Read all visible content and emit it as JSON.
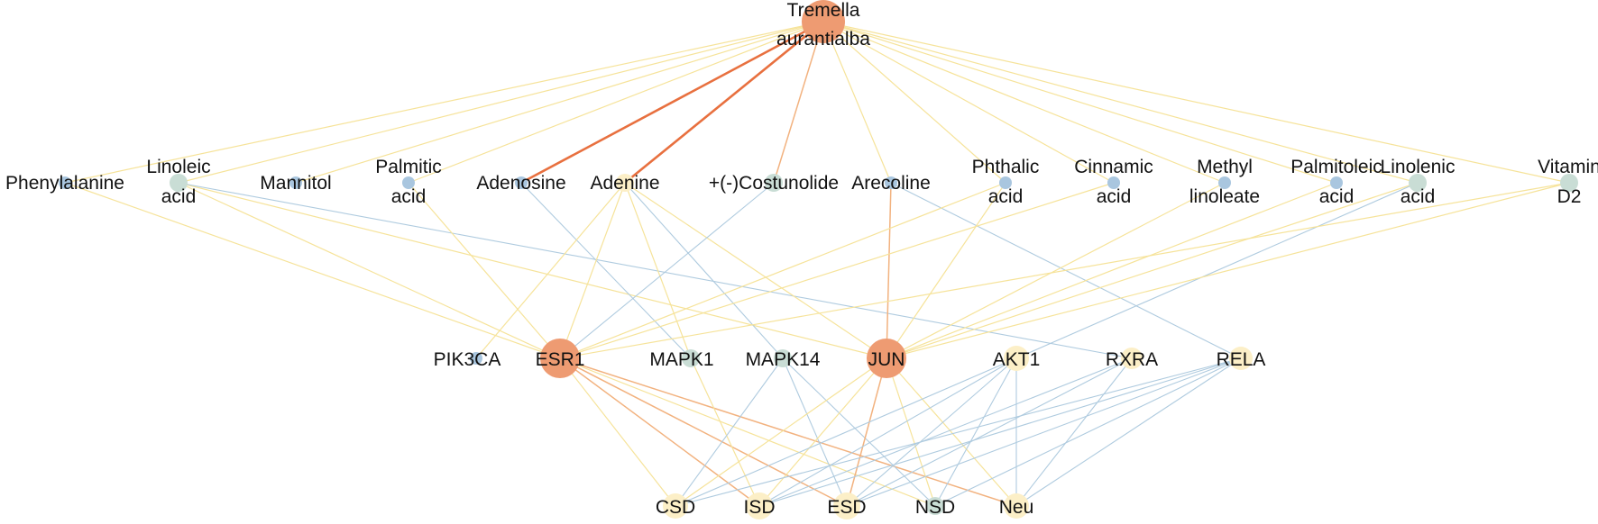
{
  "colors": {
    "hub": "#EE9B72",
    "hub_edge": "#E8703F",
    "light_node": "#FCEFC7",
    "blue_node": "#A9C6DF",
    "teal_node": "#C9DDD5",
    "yellow_edge": "#F6E39A",
    "blue_edge": "#AFCBDF",
    "orange_edge": "#F2B27F"
  },
  "nodes": {
    "tremella": {
      "label": [
        "Tremella",
        "aurantialba"
      ],
      "color": "hub"
    },
    "phenylalanine": {
      "label": [
        "Phenylalanine"
      ],
      "color": "blue_node"
    },
    "linoleic": {
      "label": [
        "Linoleic",
        "acid"
      ],
      "color": "teal_node"
    },
    "mannitol": {
      "label": [
        "Mannitol"
      ],
      "color": "blue_node"
    },
    "palmitic": {
      "label": [
        "Palmitic",
        "acid"
      ],
      "color": "blue_node"
    },
    "adenosine": {
      "label": [
        "Adenosine"
      ],
      "color": "blue_node"
    },
    "adenine": {
      "label": [
        "Adenine"
      ],
      "color": "light_node"
    },
    "costunolide": {
      "label": [
        "+(-)Costunolide"
      ],
      "color": "teal_node"
    },
    "arecoline": {
      "label": [
        "Arecoline"
      ],
      "color": "blue_node"
    },
    "phthalic": {
      "label": [
        "Phthalic",
        "acid"
      ],
      "color": "blue_node"
    },
    "cinnamic": {
      "label": [
        "Cinnamic",
        "acid"
      ],
      "color": "blue_node"
    },
    "methyl": {
      "label": [
        "Methyl",
        "linoleate"
      ],
      "color": "blue_node"
    },
    "palmitoleic": {
      "label": [
        "Palmitoleic",
        "acid"
      ],
      "color": "blue_node"
    },
    "linolenic": {
      "label": [
        "Linolenic",
        "acid"
      ],
      "color": "teal_node"
    },
    "vitamind2": {
      "label": [
        "Vitamin",
        "D2"
      ],
      "color": "teal_node"
    },
    "pik3ca": {
      "label": [
        "PIK3CA"
      ],
      "color": "blue_node"
    },
    "esr1": {
      "label": [
        "ESR1"
      ],
      "color": "hub"
    },
    "mapk1": {
      "label": [
        "MAPK1"
      ],
      "color": "teal_node"
    },
    "mapk14": {
      "label": [
        "MAPK14"
      ],
      "color": "teal_node"
    },
    "jun": {
      "label": [
        "JUN"
      ],
      "color": "hub"
    },
    "akt1": {
      "label": [
        "AKT1"
      ],
      "color": "light_node"
    },
    "rxra": {
      "label": [
        "RXRA"
      ],
      "color": "light_node"
    },
    "rela": {
      "label": [
        "RELA"
      ],
      "color": "light_node"
    },
    "csd": {
      "label": [
        "CSD"
      ],
      "color": "light_node"
    },
    "isd": {
      "label": [
        "ISD"
      ],
      "color": "light_node"
    },
    "esd": {
      "label": [
        "ESD"
      ],
      "color": "light_node"
    },
    "nsd": {
      "label": [
        "NSD"
      ],
      "color": "teal_node"
    },
    "neu": {
      "label": [
        "Neu"
      ],
      "color": "light_node"
    }
  },
  "edges": [
    [
      "tremella",
      "phenylalanine",
      "yellow_edge"
    ],
    [
      "tremella",
      "linoleic",
      "yellow_edge"
    ],
    [
      "tremella",
      "mannitol",
      "yellow_edge"
    ],
    [
      "tremella",
      "palmitic",
      "yellow_edge"
    ],
    [
      "tremella",
      "adenosine",
      "hub_edge"
    ],
    [
      "tremella",
      "adenine",
      "hub_edge"
    ],
    [
      "tremella",
      "costunolide",
      "orange_edge"
    ],
    [
      "tremella",
      "arecoline",
      "yellow_edge"
    ],
    [
      "tremella",
      "phthalic",
      "yellow_edge"
    ],
    [
      "tremella",
      "cinnamic",
      "yellow_edge"
    ],
    [
      "tremella",
      "methyl",
      "yellow_edge"
    ],
    [
      "tremella",
      "palmitoleic",
      "yellow_edge"
    ],
    [
      "tremella",
      "linolenic",
      "yellow_edge"
    ],
    [
      "tremella",
      "vitamind2",
      "yellow_edge"
    ],
    [
      "phenylalanine",
      "esr1",
      "yellow_edge"
    ],
    [
      "linoleic",
      "esr1",
      "yellow_edge"
    ],
    [
      "linoleic",
      "jun",
      "yellow_edge"
    ],
    [
      "linoleic",
      "rxra",
      "blue_edge"
    ],
    [
      "palmitic",
      "esr1",
      "yellow_edge"
    ],
    [
      "adenosine",
      "mapk1",
      "blue_edge"
    ],
    [
      "adenine",
      "esr1",
      "yellow_edge"
    ],
    [
      "adenine",
      "mapk1",
      "yellow_edge"
    ],
    [
      "adenine",
      "mapk14",
      "blue_edge"
    ],
    [
      "adenine",
      "jun",
      "yellow_edge"
    ],
    [
      "adenine",
      "pik3ca",
      "yellow_edge"
    ],
    [
      "costunolide",
      "esr1",
      "blue_edge"
    ],
    [
      "arecoline",
      "jun",
      "orange_edge"
    ],
    [
      "arecoline",
      "rela",
      "blue_edge"
    ],
    [
      "phthalic",
      "esr1",
      "yellow_edge"
    ],
    [
      "phthalic",
      "jun",
      "yellow_edge"
    ],
    [
      "cinnamic",
      "esr1",
      "yellow_edge"
    ],
    [
      "methyl",
      "jun",
      "yellow_edge"
    ],
    [
      "palmitoleic",
      "jun",
      "yellow_edge"
    ],
    [
      "linolenic",
      "jun",
      "yellow_edge"
    ],
    [
      "linolenic",
      "akt1",
      "blue_edge"
    ],
    [
      "vitamind2",
      "jun",
      "yellow_edge"
    ],
    [
      "vitamind2",
      "esr1",
      "yellow_edge"
    ],
    [
      "esr1",
      "csd",
      "yellow_edge"
    ],
    [
      "esr1",
      "isd",
      "orange_edge"
    ],
    [
      "esr1",
      "esd",
      "orange_edge"
    ],
    [
      "esr1",
      "nsd",
      "yellow_edge"
    ],
    [
      "esr1",
      "neu",
      "orange_edge"
    ],
    [
      "mapk1",
      "isd",
      "yellow_edge"
    ],
    [
      "mapk14",
      "csd",
      "blue_edge"
    ],
    [
      "mapk14",
      "nsd",
      "blue_edge"
    ],
    [
      "mapk14",
      "esd",
      "blue_edge"
    ],
    [
      "jun",
      "csd",
      "yellow_edge"
    ],
    [
      "jun",
      "isd",
      "yellow_edge"
    ],
    [
      "jun",
      "esd",
      "orange_edge"
    ],
    [
      "jun",
      "nsd",
      "yellow_edge"
    ],
    [
      "jun",
      "neu",
      "yellow_edge"
    ],
    [
      "akt1",
      "csd",
      "blue_edge"
    ],
    [
      "akt1",
      "isd",
      "blue_edge"
    ],
    [
      "akt1",
      "esd",
      "blue_edge"
    ],
    [
      "akt1",
      "nsd",
      "blue_edge"
    ],
    [
      "akt1",
      "neu",
      "blue_edge"
    ],
    [
      "rxra",
      "isd",
      "blue_edge"
    ],
    [
      "rxra",
      "esd",
      "blue_edge"
    ],
    [
      "rxra",
      "neu",
      "blue_edge"
    ],
    [
      "rela",
      "csd",
      "blue_edge"
    ],
    [
      "rela",
      "isd",
      "blue_edge"
    ],
    [
      "rela",
      "esd",
      "blue_edge"
    ],
    [
      "rela",
      "nsd",
      "blue_edge"
    ],
    [
      "rela",
      "neu",
      "blue_edge"
    ]
  ]
}
